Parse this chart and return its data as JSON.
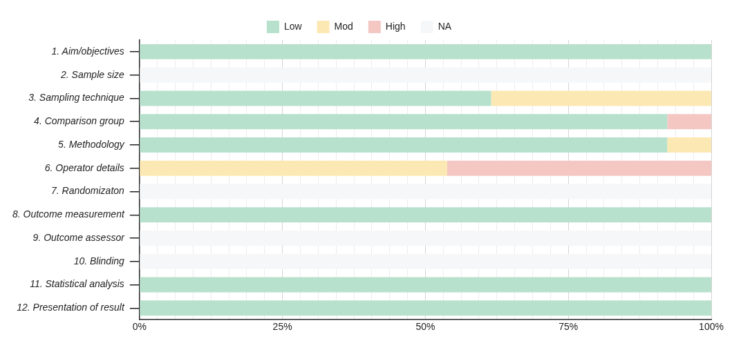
{
  "chart_data": {
    "type": "bar",
    "orientation": "horizontal",
    "stacked": true,
    "categories": [
      "1. Aim/objectives",
      "2. Sample size",
      "3. Sampling technique",
      "4. Comparison group",
      "5. Methodology",
      "6. Operator details",
      "7. Randomizaton",
      "8. Outcome measurement",
      "9. Outcome assessor",
      "10. Blinding",
      "11. Statistical analysis",
      "12. Presentation of result"
    ],
    "series": [
      {
        "name": "Low",
        "color": "#b7e1cd",
        "values": [
          100,
          0,
          61.5,
          92.3,
          92.3,
          0,
          0,
          100,
          0,
          0,
          100,
          100
        ]
      },
      {
        "name": "Mod",
        "color": "#fce8b2",
        "values": [
          0,
          0,
          38.5,
          0,
          7.7,
          53.8,
          0,
          0,
          0,
          0,
          0,
          0
        ]
      },
      {
        "name": "High",
        "color": "#f4c7c3",
        "values": [
          0,
          0,
          0,
          7.7,
          0,
          46.2,
          0,
          0,
          0,
          0,
          0,
          0
        ]
      },
      {
        "name": "NA",
        "color": "#f6f7f9",
        "values": [
          0,
          100,
          0,
          0,
          0,
          0,
          100,
          0,
          100,
          100,
          0,
          0
        ]
      }
    ],
    "xlim": [
      0,
      100
    ],
    "xticks": [
      {
        "value": 0,
        "label": "0%"
      },
      {
        "value": 3.125,
        "label": null
      },
      {
        "value": 6.25,
        "label": null
      },
      {
        "value": 9.375,
        "label": null
      },
      {
        "value": 12.5,
        "label": null
      },
      {
        "value": 15.625,
        "label": null
      },
      {
        "value": 18.75,
        "label": null
      },
      {
        "value": 21.875,
        "label": null
      },
      {
        "value": 25,
        "label": "25%"
      },
      {
        "value": 28.125,
        "label": null
      },
      {
        "value": 31.25,
        "label": null
      },
      {
        "value": 34.375,
        "label": null
      },
      {
        "value": 37.5,
        "label": null
      },
      {
        "value": 40.625,
        "label": null
      },
      {
        "value": 43.75,
        "label": null
      },
      {
        "value": 46.875,
        "label": null
      },
      {
        "value": 50,
        "label": "50%"
      },
      {
        "value": 53.125,
        "label": null
      },
      {
        "value": 56.25,
        "label": null
      },
      {
        "value": 59.375,
        "label": null
      },
      {
        "value": 62.5,
        "label": null
      },
      {
        "value": 65.625,
        "label": null
      },
      {
        "value": 68.75,
        "label": null
      },
      {
        "value": 71.875,
        "label": null
      },
      {
        "value": 75,
        "label": "75%"
      },
      {
        "value": 78.125,
        "label": null
      },
      {
        "value": 81.25,
        "label": null
      },
      {
        "value": 84.375,
        "label": null
      },
      {
        "value": 87.5,
        "label": null
      },
      {
        "value": 90.625,
        "label": null
      },
      {
        "value": 93.75,
        "label": null
      },
      {
        "value": 96.875,
        "label": null
      },
      {
        "value": 100,
        "label": "100%"
      }
    ],
    "grid": "x",
    "legend": "top"
  }
}
